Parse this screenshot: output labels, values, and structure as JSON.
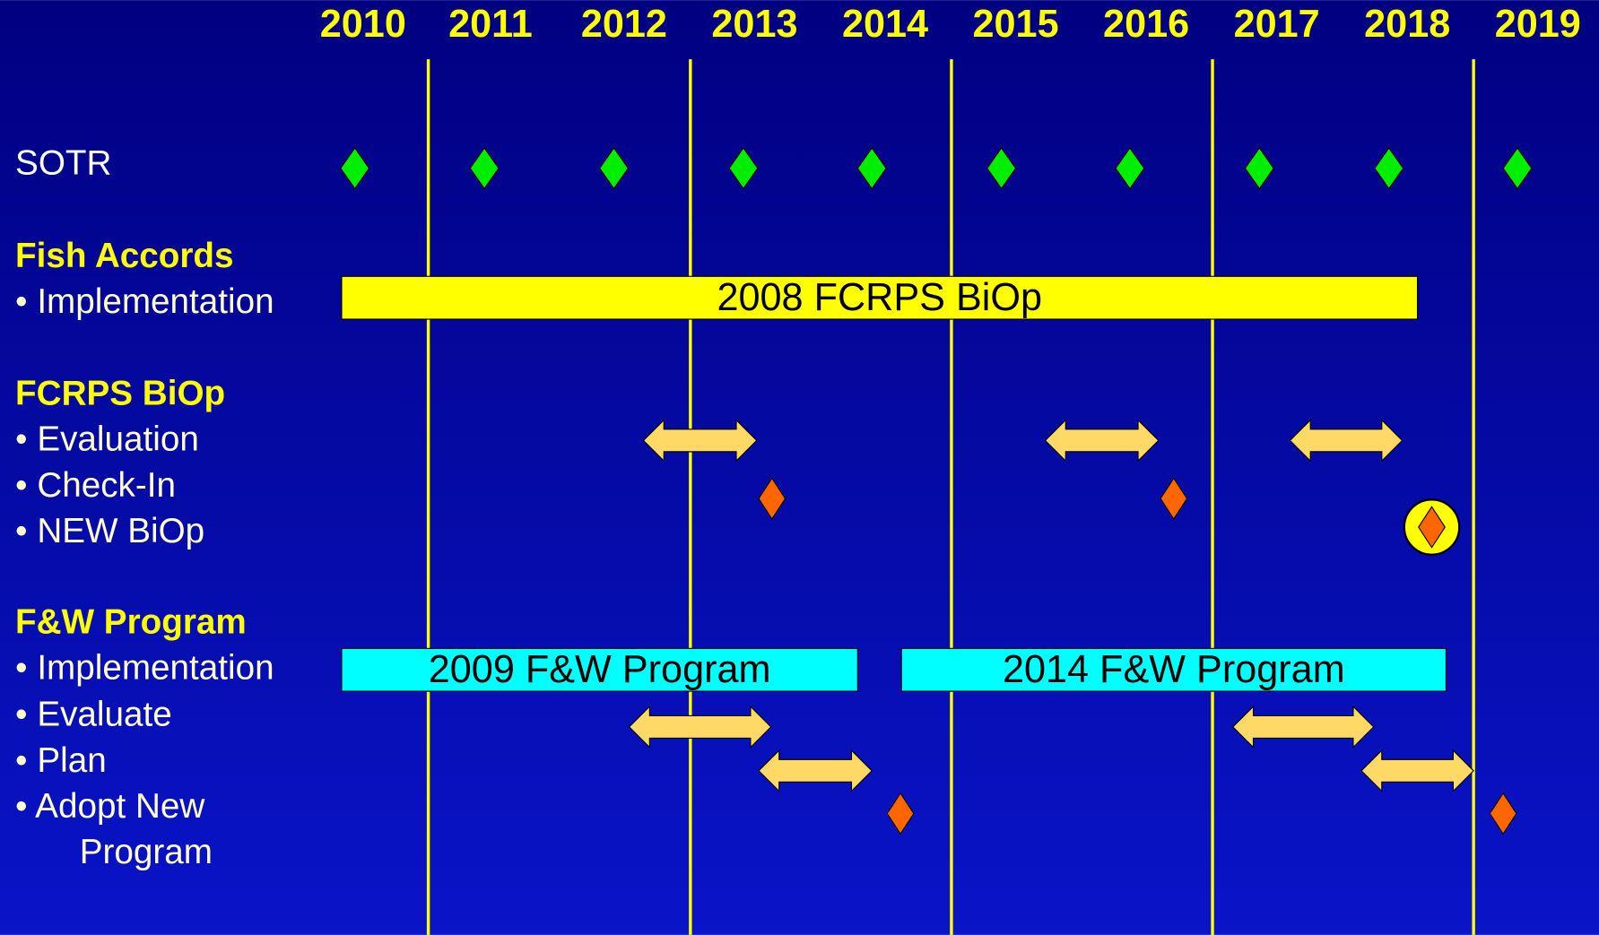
{
  "years": [
    "2010",
    "2011",
    "2012",
    "2013",
    "2014",
    "2015",
    "2016",
    "2017",
    "2018",
    "2019"
  ],
  "labels": [
    "SOTR",
    "Fish Accords",
    "• Implementation",
    "FCRPS BiOp",
    "• Evaluation",
    "• Check-In",
    "• NEW BiOp",
    "F&W Program",
    "•  Implementation",
    "•  Evaluate",
    "•  Plan",
    "•  Adopt New",
    "Program"
  ],
  "bars": [
    "2008 FCRPS BiOp",
    "2009 F&W Program",
    "2014 F&W Program"
  ]
}
